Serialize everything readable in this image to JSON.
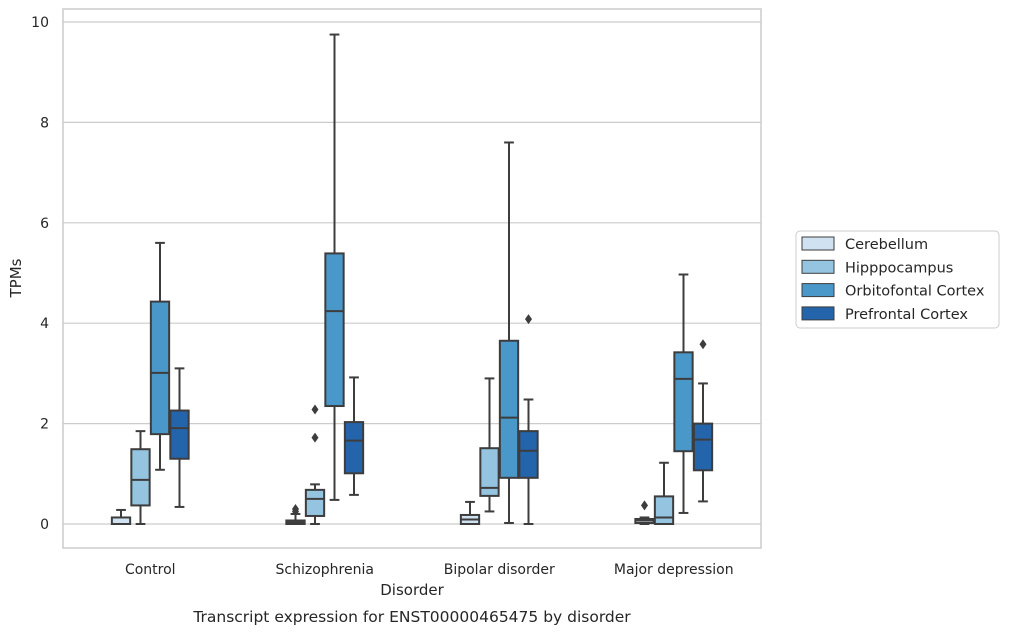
{
  "chart_data": {
    "type": "box",
    "title": "",
    "caption": "Transcript expression for ENST00000465475 by disorder",
    "xlabel": "Disorder",
    "ylabel": "TPMs",
    "ylim": [
      -0.47,
      10.22
    ],
    "yticks": [
      "0",
      "2",
      "4",
      "6",
      "8",
      "10"
    ],
    "grid": "horizontal",
    "legend_position": "right",
    "categories": [
      "Control",
      "Schizophrenia",
      "Bipolar disorder",
      "Major depression"
    ],
    "series": [
      {
        "name": "Cerebellum",
        "color": "#d0e1f2",
        "boxes": [
          {
            "whisker_low": 0.0,
            "q1": 0.0,
            "median": 0.0,
            "q3": 0.13,
            "whisker_high": 0.28,
            "outliers": []
          },
          {
            "whisker_low": 0.0,
            "q1": 0.0,
            "median": 0.03,
            "q3": 0.07,
            "whisker_high": 0.2,
            "outliers": [
              0.25,
              0.3
            ]
          },
          {
            "whisker_low": 0.0,
            "q1": 0.0,
            "median": 0.09,
            "q3": 0.18,
            "whisker_high": 0.44,
            "outliers": []
          },
          {
            "whisker_low": 0.0,
            "q1": 0.02,
            "median": 0.07,
            "q3": 0.1,
            "whisker_high": 0.13,
            "outliers": [
              0.37
            ]
          }
        ]
      },
      {
        "name": "Hipppocampus",
        "color": "#94c4df",
        "boxes": [
          {
            "whisker_low": 0.0,
            "q1": 0.37,
            "median": 0.88,
            "q3": 1.49,
            "whisker_high": 1.85,
            "outliers": []
          },
          {
            "whisker_low": 0.0,
            "q1": 0.16,
            "median": 0.5,
            "q3": 0.68,
            "whisker_high": 0.79,
            "outliers": [
              1.72,
              2.28
            ]
          },
          {
            "whisker_low": 0.25,
            "q1": 0.56,
            "median": 0.72,
            "q3": 1.51,
            "whisker_high": 2.9,
            "outliers": []
          },
          {
            "whisker_low": 0.0,
            "q1": 0.0,
            "median": 0.13,
            "q3": 0.55,
            "whisker_high": 1.22,
            "outliers": []
          }
        ]
      },
      {
        "name": "Orbitofontal Cortex",
        "color": "#4a98c9",
        "boxes": [
          {
            "whisker_low": 1.08,
            "q1": 1.79,
            "median": 3.01,
            "q3": 4.43,
            "whisker_high": 5.6,
            "outliers": []
          },
          {
            "whisker_low": 0.48,
            "q1": 2.35,
            "median": 4.24,
            "q3": 5.39,
            "whisker_high": 9.75,
            "outliers": []
          },
          {
            "whisker_low": 0.02,
            "q1": 0.92,
            "median": 2.12,
            "q3": 3.65,
            "whisker_high": 7.6,
            "outliers": []
          },
          {
            "whisker_low": 0.22,
            "q1": 1.45,
            "median": 2.89,
            "q3": 3.42,
            "whisker_high": 4.97,
            "outliers": []
          }
        ]
      },
      {
        "name": "Prefrontal Cortex",
        "color": "#2464ab",
        "boxes": [
          {
            "whisker_low": 0.34,
            "q1": 1.3,
            "median": 1.91,
            "q3": 2.26,
            "whisker_high": 3.1,
            "outliers": []
          },
          {
            "whisker_low": 0.58,
            "q1": 1.01,
            "median": 1.66,
            "q3": 2.03,
            "whisker_high": 2.92,
            "outliers": []
          },
          {
            "whisker_low": 0.0,
            "q1": 0.92,
            "median": 1.46,
            "q3": 1.85,
            "whisker_high": 2.48,
            "outliers": [
              4.08
            ]
          },
          {
            "whisker_low": 0.45,
            "q1": 1.07,
            "median": 1.68,
            "q3": 2.0,
            "whisker_high": 2.8,
            "outliers": [
              3.58
            ]
          }
        ]
      }
    ]
  }
}
